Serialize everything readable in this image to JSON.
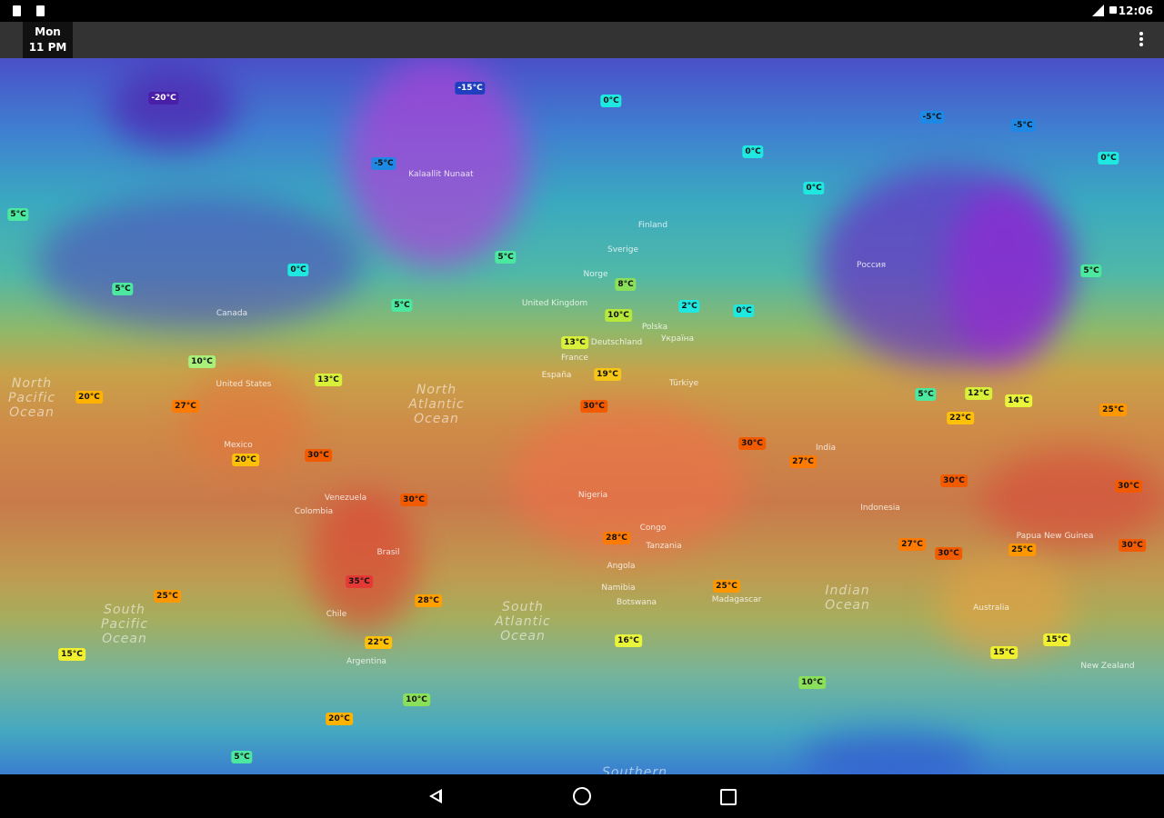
{
  "status_bar": {
    "time": "12:06"
  },
  "toolbar": {
    "day": "Mon",
    "hour": "11 PM",
    "menu_icon": "more-vert-icon"
  },
  "map": {
    "temperature_labels": [
      {
        "text": "-20°C",
        "color": "#4a1fa8",
        "fg": "#ffffff"
      },
      {
        "text": "-15°C",
        "color": "#1f3fbf",
        "fg": "#ffffff"
      },
      {
        "text": "-5°C",
        "color": "#1e88e5",
        "fg": "#111111"
      },
      {
        "text": "5°C",
        "color": "#4de8a0",
        "fg": "#111111"
      },
      {
        "text": "5°C",
        "color": "#4de8a0",
        "fg": "#111111"
      },
      {
        "text": "0°C",
        "color": "#1ee8e0",
        "fg": "#111111"
      },
      {
        "text": "5°C",
        "color": "#4de8a0",
        "fg": "#111111"
      },
      {
        "text": "5°C",
        "color": "#4de8a0",
        "fg": "#111111"
      },
      {
        "text": "0°C",
        "color": "#1ee8e0",
        "fg": "#111111"
      },
      {
        "text": "0°C",
        "color": "#1ee8e0",
        "fg": "#111111"
      },
      {
        "text": "0°C",
        "color": "#1ee8e0",
        "fg": "#111111"
      },
      {
        "text": "-5°C",
        "color": "#1e88e5",
        "fg": "#111111"
      },
      {
        "text": "-5°C",
        "color": "#1e88e5",
        "fg": "#111111"
      },
      {
        "text": "0°C",
        "color": "#1ee8e0",
        "fg": "#111111"
      },
      {
        "text": "5°C",
        "color": "#4de8a0",
        "fg": "#111111"
      },
      {
        "text": "8°C",
        "color": "#8be05a",
        "fg": "#111111"
      },
      {
        "text": "10°C",
        "color": "#b5e83a",
        "fg": "#111111"
      },
      {
        "text": "2°C",
        "color": "#1ee8e0",
        "fg": "#111111"
      },
      {
        "text": "0°C",
        "color": "#1ee8e0",
        "fg": "#111111"
      },
      {
        "text": "13°C",
        "color": "#d8f03a",
        "fg": "#111111"
      },
      {
        "text": "19°C",
        "color": "#f5c518",
        "fg": "#111111"
      },
      {
        "text": "10°C",
        "color": "#a8f07a",
        "fg": "#111111"
      },
      {
        "text": "13°C",
        "color": "#d8f03a",
        "fg": "#111111"
      },
      {
        "text": "20°C",
        "color": "#ffb300",
        "fg": "#111111"
      },
      {
        "text": "27°C",
        "color": "#ff7a00",
        "fg": "#111111"
      },
      {
        "text": "30°C",
        "color": "#f25a00",
        "fg": "#111111"
      },
      {
        "text": "5°C",
        "color": "#4de8a0",
        "fg": "#111111"
      },
      {
        "text": "12°C",
        "color": "#d8f03a",
        "fg": "#111111"
      },
      {
        "text": "14°C",
        "color": "#e8f53a",
        "fg": "#111111"
      },
      {
        "text": "22°C",
        "color": "#ffc107",
        "fg": "#111111"
      },
      {
        "text": "25°C",
        "color": "#ff9800",
        "fg": "#111111"
      },
      {
        "text": "20°C",
        "color": "#ffc107",
        "fg": "#111111"
      },
      {
        "text": "30°C",
        "color": "#f25a00",
        "fg": "#111111"
      },
      {
        "text": "30°C",
        "color": "#f25a00",
        "fg": "#111111"
      },
      {
        "text": "30°C",
        "color": "#f25a00",
        "fg": "#111111"
      },
      {
        "text": "27°C",
        "color": "#ff7a00",
        "fg": "#111111"
      },
      {
        "text": "30°C",
        "color": "#f25a00",
        "fg": "#111111"
      },
      {
        "text": "30°C",
        "color": "#f25a00",
        "fg": "#111111"
      },
      {
        "text": "28°C",
        "color": "#ff7a00",
        "fg": "#111111"
      },
      {
        "text": "27°C",
        "color": "#ff7a00",
        "fg": "#111111"
      },
      {
        "text": "30°C",
        "color": "#f25a00",
        "fg": "#111111"
      },
      {
        "text": "25°C",
        "color": "#ff9800",
        "fg": "#111111"
      },
      {
        "text": "30°C",
        "color": "#f25a00",
        "fg": "#111111"
      },
      {
        "text": "35°C",
        "color": "#e53935",
        "fg": "#111111"
      },
      {
        "text": "25°C",
        "color": "#ff9800",
        "fg": "#111111"
      },
      {
        "text": "28°C",
        "color": "#ffa000",
        "fg": "#111111"
      },
      {
        "text": "25°C",
        "color": "#ff9800",
        "fg": "#111111"
      },
      {
        "text": "15°C",
        "color": "#f0f030",
        "fg": "#111111"
      },
      {
        "text": "22°C",
        "color": "#ffc107",
        "fg": "#111111"
      },
      {
        "text": "16°C",
        "color": "#e8f53a",
        "fg": "#111111"
      },
      {
        "text": "15°C",
        "color": "#f0f030",
        "fg": "#111111"
      },
      {
        "text": "15°C",
        "color": "#f0f030",
        "fg": "#111111"
      },
      {
        "text": "10°C",
        "color": "#8be05a",
        "fg": "#111111"
      },
      {
        "text": "10°C",
        "color": "#8be05a",
        "fg": "#111111"
      },
      {
        "text": "20°C",
        "color": "#ffb300",
        "fg": "#111111"
      },
      {
        "text": "5°C",
        "color": "#4de8a0",
        "fg": "#111111"
      }
    ],
    "oceans": [
      "North\nPacific\nOcean",
      "North\nAtlantic\nOcean",
      "South\nPacific\nOcean",
      "South\nAtlantic\nOcean",
      "Indian\nOcean",
      "Southern"
    ],
    "places": [
      "Canada",
      "United States",
      "Mexico",
      "Venezuela",
      "Colombia",
      "Brasil",
      "Argentina",
      "Chile",
      "Finland",
      "Sverige",
      "Norge",
      "United Kingdom",
      "France",
      "España",
      "Deutschland",
      "Polska",
      "Україна",
      "Türkiye",
      "Россия",
      "India",
      "Indonesia",
      "Papua New Guinea",
      "Australia",
      "New Zealand",
      "Nigeria",
      "Congo",
      "Tanzania",
      "Angola",
      "Namibia",
      "Botswana",
      "Madagascar",
      "Kalaallit Nunaat"
    ]
  }
}
